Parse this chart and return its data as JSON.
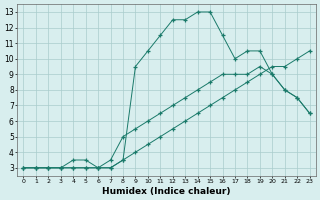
{
  "xlabel": "Humidex (Indice chaleur)",
  "ylabel": "",
  "background_color": "#d8eeee",
  "grid_color": "#aacccc",
  "line_color": "#1a7a6a",
  "xlim": [
    -0.5,
    23.5
  ],
  "ylim": [
    2.5,
    13.5
  ],
  "xticks": [
    0,
    1,
    2,
    3,
    4,
    5,
    6,
    7,
    8,
    9,
    10,
    11,
    12,
    13,
    14,
    15,
    16,
    17,
    18,
    19,
    20,
    21,
    22,
    23
  ],
  "yticks": [
    3,
    4,
    5,
    6,
    7,
    8,
    9,
    10,
    11,
    12,
    13
  ],
  "line1_x": [
    0,
    1,
    2,
    3,
    4,
    5,
    6,
    7,
    8,
    9,
    10,
    11,
    12,
    13,
    14,
    15,
    16,
    17,
    18,
    19,
    20,
    21,
    22,
    23
  ],
  "line1_y": [
    3.0,
    3.0,
    3.0,
    3.0,
    3.0,
    3.0,
    3.0,
    3.0,
    3.5,
    4.0,
    4.5,
    5.0,
    5.5,
    6.0,
    6.5,
    7.0,
    7.5,
    8.0,
    8.5,
    9.0,
    9.5,
    9.5,
    10.0,
    10.5
  ],
  "line2_x": [
    0,
    1,
    2,
    3,
    4,
    5,
    6,
    7,
    8,
    9,
    10,
    11,
    12,
    13,
    14,
    15,
    16,
    17,
    18,
    19,
    20,
    21,
    22,
    23
  ],
  "line2_y": [
    3.0,
    3.0,
    3.0,
    3.0,
    3.5,
    3.5,
    3.0,
    3.5,
    5.0,
    5.5,
    6.0,
    6.5,
    7.0,
    7.5,
    8.0,
    8.5,
    9.0,
    9.0,
    9.0,
    9.5,
    9.0,
    8.0,
    7.5,
    6.5
  ],
  "line3_x": [
    0,
    1,
    2,
    3,
    4,
    5,
    6,
    7,
    8,
    9,
    10,
    11,
    12,
    13,
    14,
    15,
    16,
    17,
    18,
    19,
    20,
    21,
    22,
    23
  ],
  "line3_y": [
    3.0,
    3.0,
    3.0,
    3.0,
    3.0,
    3.0,
    3.0,
    3.0,
    3.5,
    9.5,
    10.5,
    11.5,
    12.5,
    12.5,
    13.0,
    13.0,
    11.5,
    10.0,
    10.5,
    10.5,
    9.0,
    8.0,
    7.5,
    6.5
  ]
}
